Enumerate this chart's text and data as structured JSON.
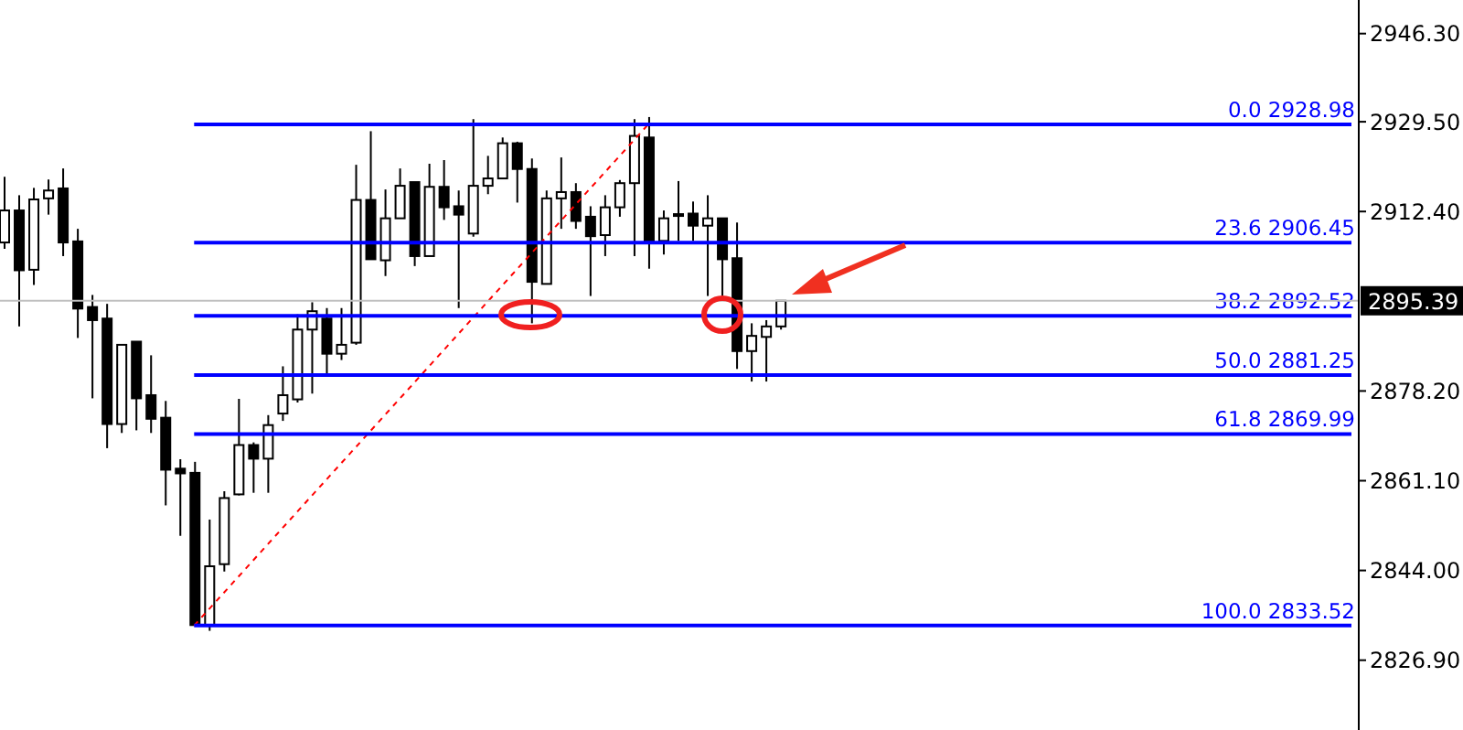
{
  "chart_data": {
    "type": "candlestick",
    "categories": [
      null,
      null,
      null,
      null,
      null,
      null,
      null,
      null,
      null,
      null,
      null,
      null,
      null,
      null,
      null,
      null,
      null,
      null,
      null,
      null,
      null,
      null,
      null,
      null,
      null,
      null,
      null,
      null,
      null,
      null,
      null,
      null,
      null,
      null,
      null,
      null,
      null,
      null,
      null,
      null,
      null,
      null,
      null,
      null,
      null,
      null,
      null,
      null,
      null,
      null,
      null,
      null,
      null,
      null,
      null,
      null,
      null,
      null,
      null,
      null,
      null,
      null,
      null,
      null,
      null,
      null,
      null,
      null,
      null,
      null,
      null,
      null,
      null,
      null,
      null,
      null,
      null,
      null,
      null,
      null,
      null,
      null,
      null,
      null,
      null,
      null,
      null,
      null,
      null,
      null,
      null,
      null,
      null
    ],
    "ohlc": [
      [
        2906.5,
        2919.0,
        2905.3,
        2912.6
      ],
      [
        2912.6,
        2915.5,
        2890.5,
        2901.2
      ],
      [
        2901.3,
        2916.9,
        2898.4,
        2914.7
      ],
      [
        2914.9,
        2918.5,
        2911.8,
        2916.4
      ],
      [
        2916.8,
        2920.6,
        2903.9,
        2906.5
      ],
      [
        2906.7,
        2909.1,
        2888.3,
        2893.9
      ],
      [
        2894.2,
        2896.5,
        2876.8,
        2891.7
      ],
      [
        2892.0,
        2894.8,
        2867.3,
        2871.9
      ],
      [
        2871.9,
        2887.0,
        2870.2,
        2887.0
      ],
      [
        2887.6,
        2887.6,
        2870.7,
        2876.8
      ],
      [
        2877.4,
        2885.0,
        2870.2,
        2872.9
      ],
      [
        2873.1,
        2876.3,
        2856.4,
        2863.2
      ],
      [
        2863.4,
        2865.2,
        2850.6,
        2862.5
      ],
      [
        2862.6,
        2864.7,
        2833.5,
        2833.6
      ],
      [
        2833.6,
        2853.7,
        2832.5,
        2844.8
      ],
      [
        2845.2,
        2859.1,
        2843.8,
        2857.8
      ],
      [
        2858.5,
        2876.7,
        2858.3,
        2867.9
      ],
      [
        2867.9,
        2868.4,
        2858.8,
        2865.3
      ],
      [
        2865.3,
        2873.6,
        2858.8,
        2871.7
      ],
      [
        2873.9,
        2882.9,
        2872.5,
        2877.4
      ],
      [
        2876.6,
        2892.8,
        2876.0,
        2889.9
      ],
      [
        2889.9,
        2895.1,
        2877.7,
        2893.4
      ],
      [
        2892.0,
        2894.0,
        2881.5,
        2885.3
      ],
      [
        2885.3,
        2894.0,
        2884.1,
        2887.0
      ],
      [
        2887.4,
        2921.3,
        2887.0,
        2914.6
      ],
      [
        2914.6,
        2927.7,
        2903.3,
        2903.3
      ],
      [
        2903.1,
        2916.6,
        2900.1,
        2911.1
      ],
      [
        2911.1,
        2920.6,
        2911.1,
        2917.3
      ],
      [
        2918.0,
        2918.0,
        2902.0,
        2903.9
      ],
      [
        2903.9,
        2921.5,
        2903.9,
        2917.1
      ],
      [
        2917.1,
        2922.2,
        2910.8,
        2913.2
      ],
      [
        2913.4,
        2916.4,
        2894.0,
        2911.8
      ],
      [
        2908.2,
        2930.0,
        2907.6,
        2917.3
      ],
      [
        2917.3,
        2923.0,
        2915.7,
        2918.7
      ],
      [
        2918.7,
        2926.5,
        2918.7,
        2925.4
      ],
      [
        2925.4,
        2925.7,
        2914.1,
        2920.5
      ],
      [
        2920.5,
        2922.5,
        2891.1,
        2899.0
      ],
      [
        2898.6,
        2916.4,
        2898.6,
        2914.9
      ],
      [
        2914.9,
        2922.7,
        2909.1,
        2916.1
      ],
      [
        2916.1,
        2917.8,
        2909.1,
        2910.6
      ],
      [
        2911.4,
        2913.4,
        2896.3,
        2907.7
      ],
      [
        2907.9,
        2915.5,
        2903.9,
        2913.2
      ],
      [
        2913.2,
        2918.4,
        2911.4,
        2917.8
      ],
      [
        2917.8,
        2930.0,
        2903.9,
        2926.8
      ],
      [
        2926.5,
        2930.4,
        2901.5,
        2906.8
      ],
      [
        2906.8,
        2912.6,
        2904.2,
        2911.1
      ],
      [
        2911.9,
        2918.2,
        2906.8,
        2911.7
      ],
      [
        2912.0,
        2914.3,
        2906.8,
        2909.7
      ],
      [
        2909.7,
        2915.5,
        2896.3,
        2911.1
      ],
      [
        2911.1,
        2911.1,
        2896.3,
        2903.3
      ],
      [
        2903.5,
        2910.3,
        2882.4,
        2885.8
      ],
      [
        2885.8,
        2891.1,
        2880.0,
        2888.7
      ],
      [
        2888.5,
        2891.7,
        2880.0,
        2890.5
      ],
      [
        2890.5,
        2895.5,
        2889.9,
        2895.39
      ],
      null,
      null,
      null,
      null,
      null,
      null,
      null,
      null,
      null,
      null,
      null,
      null,
      null,
      null,
      null,
      null,
      null,
      null,
      null,
      null,
      null,
      null,
      null,
      null,
      null,
      null,
      null,
      null,
      null,
      null,
      null,
      null,
      null,
      null,
      null,
      null,
      null,
      null,
      null
    ],
    "series": [
      {
        "type": "line",
        "color": "#ff0000",
        "line_style": "dashed",
        "marker": "none",
        "values": [
          null,
          null,
          null,
          null,
          null,
          null,
          null,
          null,
          null,
          null,
          null,
          null,
          null,
          2833.5,
          null,
          null,
          null,
          null,
          null,
          null,
          null,
          null,
          null,
          null,
          null,
          null,
          null,
          null,
          null,
          null,
          null,
          null,
          null,
          null,
          null,
          null,
          null,
          null,
          null,
          null,
          null,
          null,
          null,
          null,
          2929.0,
          null,
          null,
          null,
          null,
          null,
          null,
          null,
          null,
          null,
          null,
          null,
          null,
          null,
          null,
          null,
          null,
          null,
          null,
          null,
          null,
          null,
          null,
          null,
          null,
          null,
          null,
          null,
          null,
          null,
          null,
          null,
          null,
          null,
          null,
          null,
          null,
          null,
          null,
          null,
          null,
          null,
          null,
          null,
          null,
          null,
          null,
          null,
          null
        ]
      }
    ],
    "ylim": [
      2813.6,
      2952.7
    ],
    "yticks": [
      {
        "value": 2826.9,
        "label": "2826.90"
      },
      {
        "value": 2844,
        "label": "2844.00"
      },
      {
        "value": 2861.1,
        "label": "2861.10"
      },
      {
        "value": 2878.2,
        "label": "2878.20"
      },
      {
        "value": 2912.4,
        "label": "2912.40"
      },
      {
        "value": 2929.5,
        "label": "2929.50"
      },
      {
        "value": 2946.3,
        "label": "2946.30"
      }
    ],
    "ref_lines": [
      {
        "axis": "y",
        "value": 2928.98,
        "label": "0.0 2928.98",
        "color": "#0000ff"
      },
      {
        "axis": "y",
        "value": 2906.45,
        "label": "23.6 2906.45",
        "color": "#0000ff"
      },
      {
        "axis": "y",
        "value": 2892.52,
        "label": "38.2 2892.52",
        "color": "#0000ff"
      },
      {
        "axis": "y",
        "value": 2881.25,
        "label": "50.0 2881.25",
        "color": "#0000ff"
      },
      {
        "axis": "y",
        "value": 2869.99,
        "label": "61.8 2869.99",
        "color": "#0000ff"
      },
      {
        "axis": "y",
        "value": 2833.52,
        "label": "100.0 2833.52",
        "color": "#0000ff"
      },
      {
        "axis": "y",
        "value": 2895.39,
        "label": "2895.39",
        "color": "#c0c0c0"
      }
    ],
    "grid": false,
    "legend": false
  }
}
